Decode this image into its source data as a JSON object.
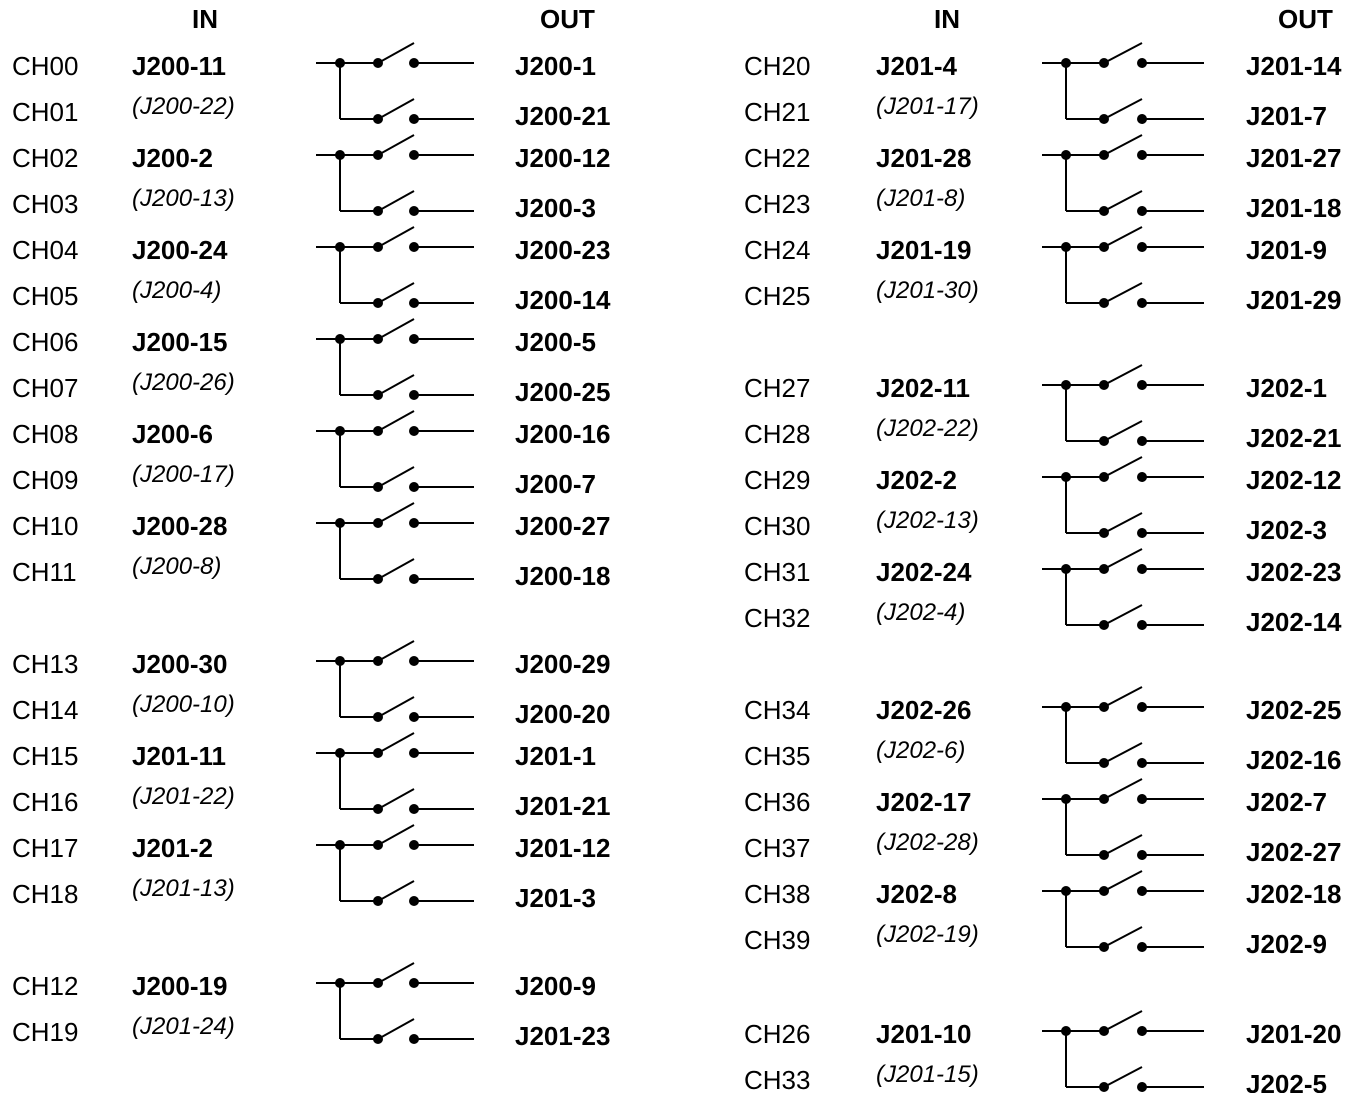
{
  "headers": {
    "in": "IN",
    "out": "OUT"
  },
  "left_column": [
    {
      "top_channel": "CH00",
      "bottom_channel": "CH01",
      "in_primary": "J200-11",
      "in_secondary": "(J200-22)",
      "out_top": "J200-1",
      "out_bottom": "J200-21"
    },
    {
      "top_channel": "CH02",
      "bottom_channel": "CH03",
      "in_primary": "J200-2",
      "in_secondary": "(J200-13)",
      "out_top": "J200-12",
      "out_bottom": "J200-3"
    },
    {
      "top_channel": "CH04",
      "bottom_channel": "CH05",
      "in_primary": "J200-24",
      "in_secondary": "(J200-4)",
      "out_top": "J200-23",
      "out_bottom": "J200-14"
    },
    {
      "top_channel": "CH06",
      "bottom_channel": "CH07",
      "in_primary": "J200-15",
      "in_secondary": "(J200-26)",
      "out_top": "J200-5",
      "out_bottom": "J200-25"
    },
    {
      "top_channel": "CH08",
      "bottom_channel": "CH09",
      "in_primary": "J200-6",
      "in_secondary": "(J200-17)",
      "out_top": "J200-16",
      "out_bottom": "J200-7"
    },
    {
      "top_channel": "CH10",
      "bottom_channel": "CH11",
      "in_primary": "J200-28",
      "in_secondary": "(J200-8)",
      "out_top": "J200-27",
      "out_bottom": "J200-18"
    },
    {
      "top_channel": "CH13",
      "bottom_channel": "CH14",
      "in_primary": "J200-30",
      "in_secondary": "(J200-10)",
      "out_top": "J200-29",
      "out_bottom": "J200-20"
    },
    {
      "top_channel": "CH15",
      "bottom_channel": "CH16",
      "in_primary": "J201-11",
      "in_secondary": "(J201-22)",
      "out_top": "J201-1",
      "out_bottom": "J201-21"
    },
    {
      "top_channel": "CH17",
      "bottom_channel": "CH18",
      "in_primary": "J201-2",
      "in_secondary": "(J201-13)",
      "out_top": "J201-12",
      "out_bottom": "J201-3"
    },
    {
      "top_channel": "CH12",
      "bottom_channel": "CH19",
      "in_primary": "J200-19",
      "in_secondary": "(J201-24)",
      "out_top": "J200-9",
      "out_bottom": "J201-23"
    }
  ],
  "right_column": [
    {
      "top_channel": "CH20",
      "bottom_channel": "CH21",
      "in_primary": "J201-4",
      "in_secondary": "(J201-17)",
      "out_top": "J201-14",
      "out_bottom": "J201-7"
    },
    {
      "top_channel": "CH22",
      "bottom_channel": "CH23",
      "in_primary": "J201-28",
      "in_secondary": "(J201-8)",
      "out_top": "J201-27",
      "out_bottom": "J201-18"
    },
    {
      "top_channel": "CH24",
      "bottom_channel": "CH25",
      "in_primary": "J201-19",
      "in_secondary": "(J201-30)",
      "out_top": "J201-9",
      "out_bottom": "J201-29"
    },
    {
      "top_channel": "CH27",
      "bottom_channel": "CH28",
      "in_primary": "J202-11",
      "in_secondary": "(J202-22)",
      "out_top": "J202-1",
      "out_bottom": "J202-21"
    },
    {
      "top_channel": "CH29",
      "bottom_channel": "CH30",
      "in_primary": "J202-2",
      "in_secondary": "(J202-13)",
      "out_top": "J202-12",
      "out_bottom": "J202-3"
    },
    {
      "top_channel": "CH31",
      "bottom_channel": "CH32",
      "in_primary": "J202-24",
      "in_secondary": "(J202-4)",
      "out_top": "J202-23",
      "out_bottom": "J202-14"
    },
    {
      "top_channel": "CH34",
      "bottom_channel": "CH35",
      "in_primary": "J202-26",
      "in_secondary": "(J202-6)",
      "out_top": "J202-25",
      "out_bottom": "J202-16"
    },
    {
      "top_channel": "CH36",
      "bottom_channel": "CH37",
      "in_primary": "J202-17",
      "in_secondary": "(J202-28)",
      "out_top": "J202-7",
      "out_bottom": "J202-27"
    },
    {
      "top_channel": "CH38",
      "bottom_channel": "CH39",
      "in_primary": "J202-8",
      "in_secondary": "(J202-19)",
      "out_top": "J202-18",
      "out_bottom": "J202-9"
    },
    {
      "top_channel": "CH26",
      "bottom_channel": "CH33",
      "in_primary": "J201-10",
      "in_secondary": "(J201-15)",
      "out_top": "J201-20",
      "out_bottom": "J202-5"
    }
  ]
}
